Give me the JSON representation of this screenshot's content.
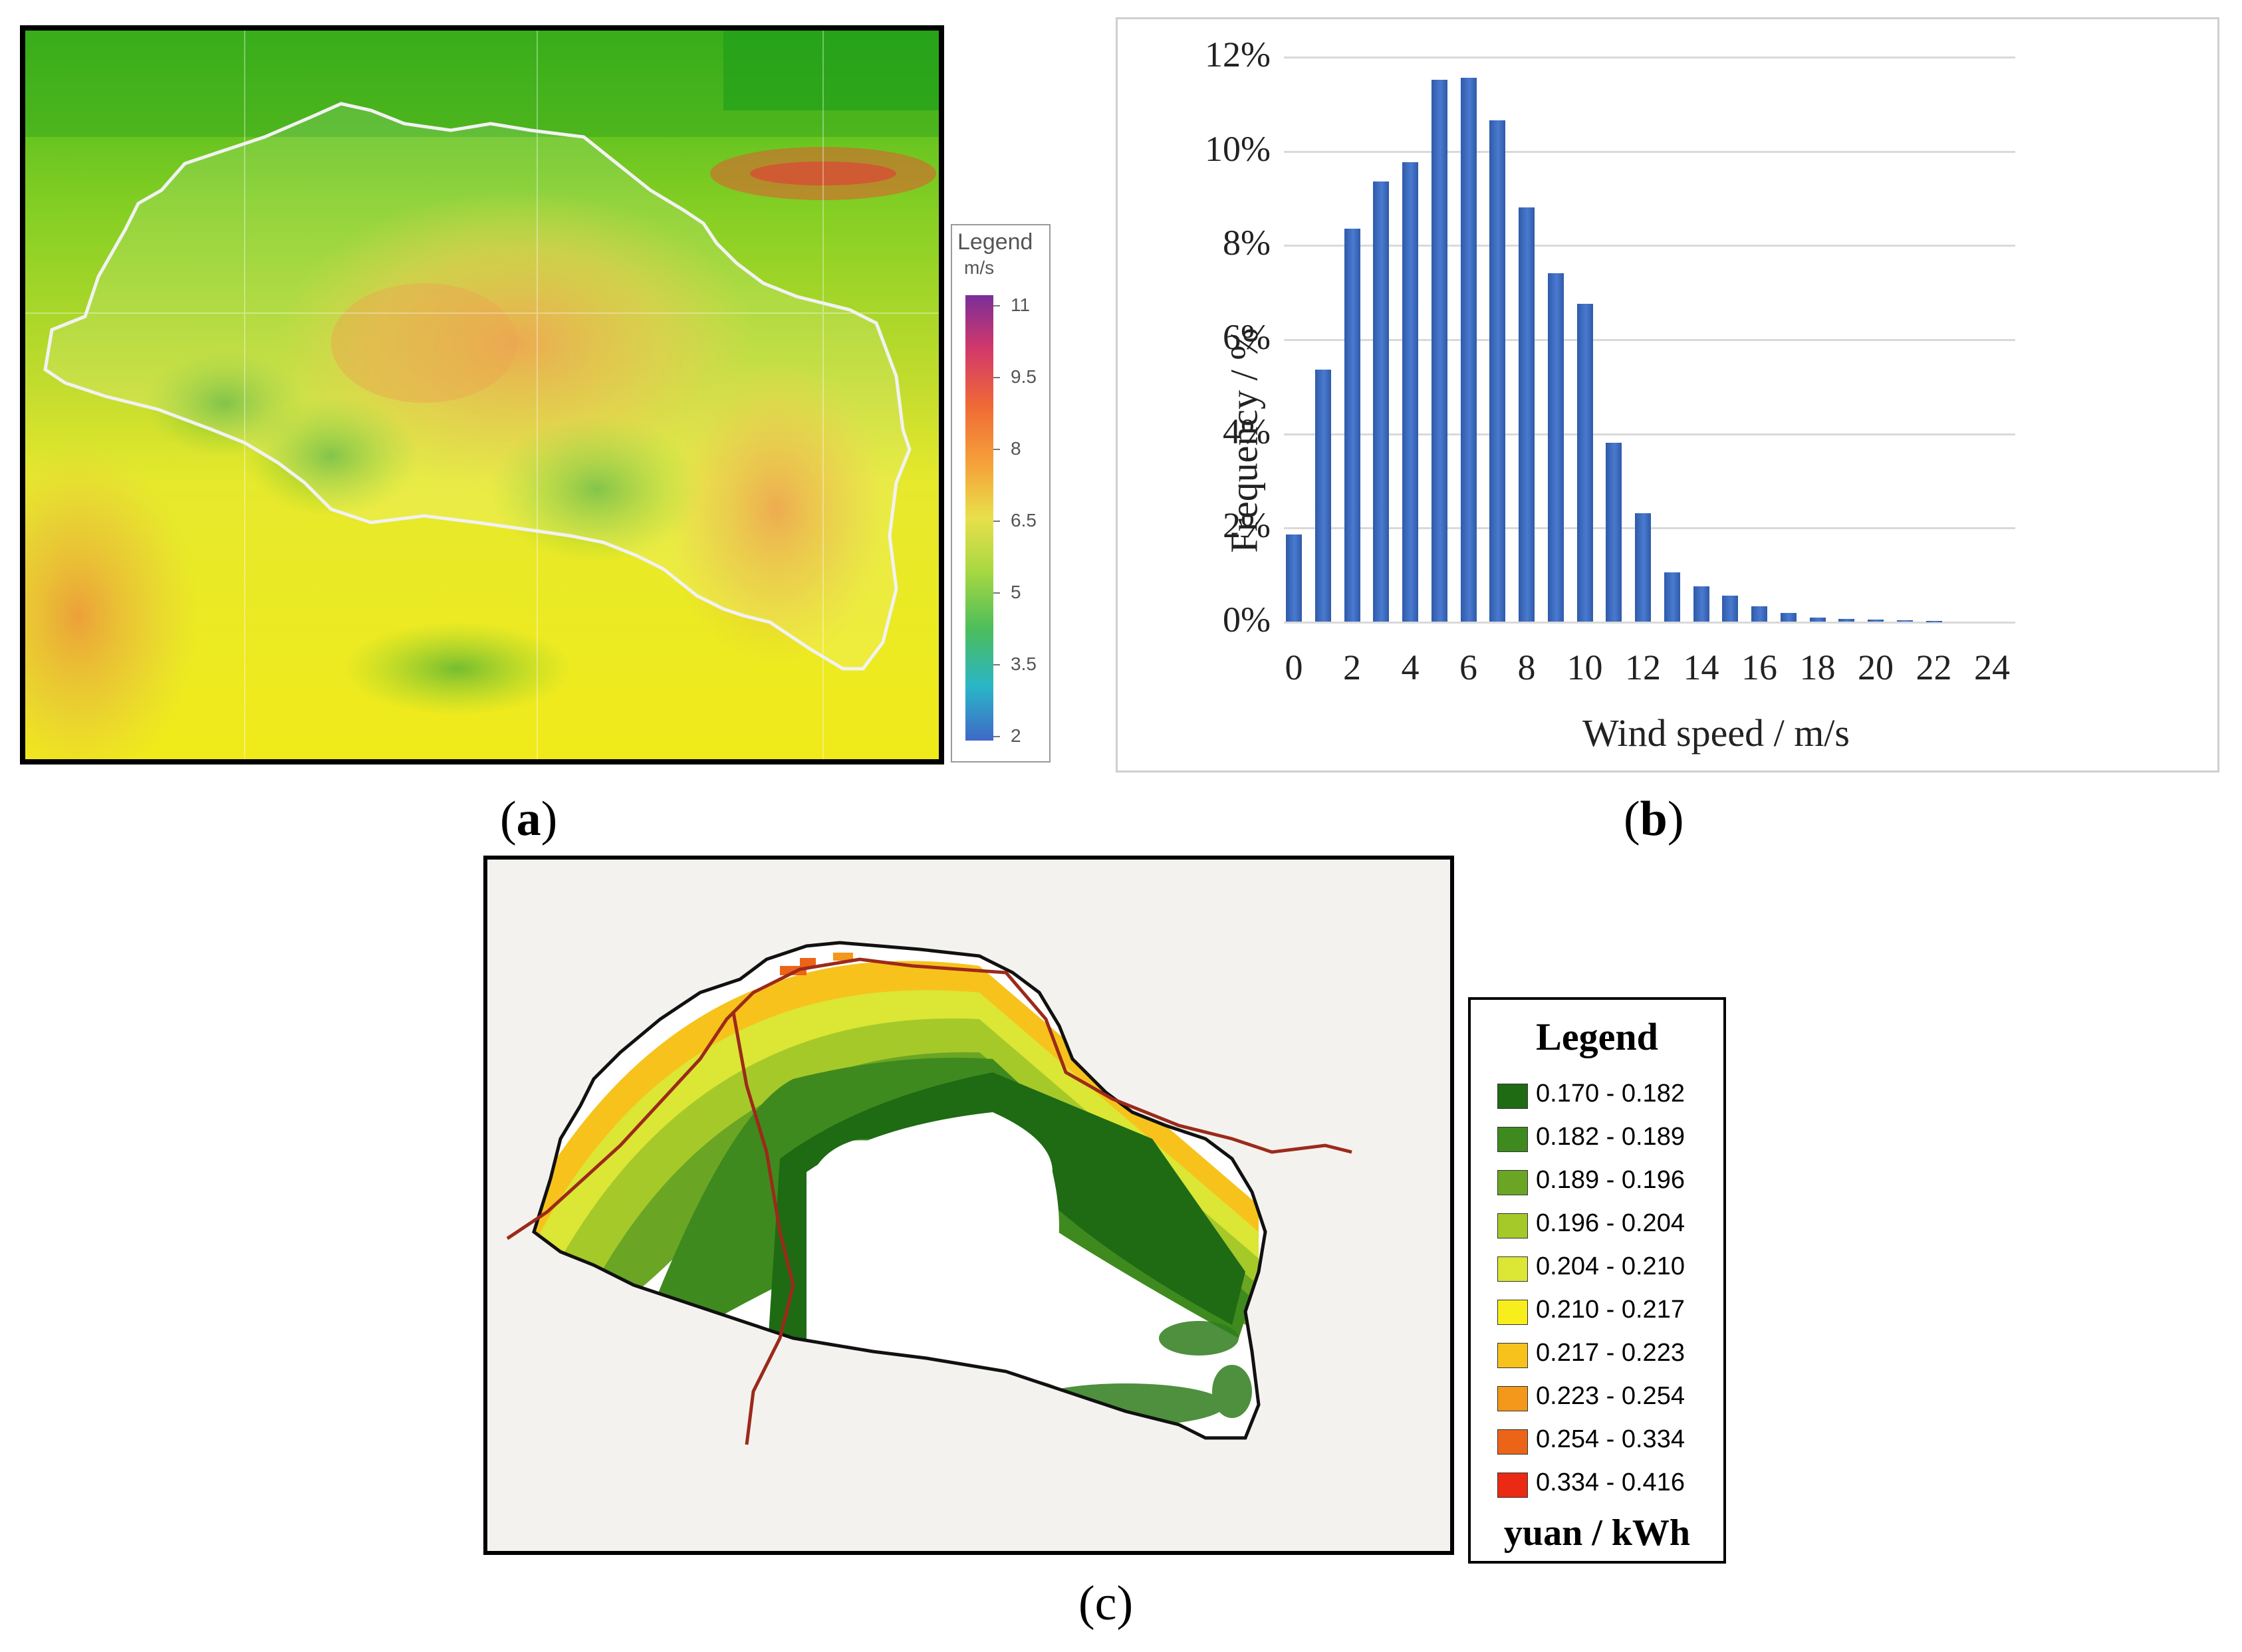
{
  "panel_a": {
    "caption": "a",
    "legend": {
      "title": "Legend",
      "unit": "m/s",
      "ticks": [
        "11",
        "9.5",
        "8",
        "6.5",
        "5",
        "3.5",
        "2"
      ]
    }
  },
  "panel_b": {
    "caption": "b",
    "chart_data": {
      "type": "bar",
      "title": "",
      "xlabel": "Wind speed / m/s",
      "ylabel": "Frequency / %",
      "ylim": [
        0,
        12
      ],
      "yticks": [
        "0%",
        "2%",
        "4%",
        "6%",
        "8%",
        "10%",
        "12%"
      ],
      "xticks": [
        "0",
        "2",
        "4",
        "6",
        "8",
        "10",
        "12",
        "14",
        "16",
        "18",
        "20",
        "22",
        "24"
      ],
      "x": [
        0,
        1,
        2,
        3,
        4,
        5,
        6,
        7,
        8,
        9,
        10,
        11,
        12,
        13,
        14,
        15,
        16,
        17,
        18,
        19,
        20,
        21,
        22
      ],
      "values": [
        1.85,
        5.35,
        8.35,
        9.35,
        9.75,
        11.5,
        11.55,
        10.65,
        8.8,
        7.4,
        6.75,
        3.8,
        2.3,
        1.05,
        0.75,
        0.55,
        0.32,
        0.18,
        0.08,
        0.06,
        0.04,
        0.03,
        0.02
      ]
    }
  },
  "panel_c": {
    "caption": "c",
    "legend": {
      "title": "Legend",
      "unit": "yuan / kWh",
      "items": [
        {
          "label": "0.170 - 0.182",
          "color": "#1e6b14"
        },
        {
          "label": "0.182 - 0.189",
          "color": "#3f8a1e"
        },
        {
          "label": "0.189 - 0.196",
          "color": "#6aa624"
        },
        {
          "label": "0.196 - 0.204",
          "color": "#a6c92a"
        },
        {
          "label": "0.204 - 0.210",
          "color": "#dbe635"
        },
        {
          "label": "0.210 - 0.217",
          "color": "#f7ee1c"
        },
        {
          "label": "0.217 - 0.223",
          "color": "#f7c21c"
        },
        {
          "label": "0.223 - 0.254",
          "color": "#f3981a"
        },
        {
          "label": "0.254 - 0.334",
          "color": "#ec6418"
        },
        {
          "label": "0.334 - 0.416",
          "color": "#ea2a14"
        }
      ]
    }
  }
}
